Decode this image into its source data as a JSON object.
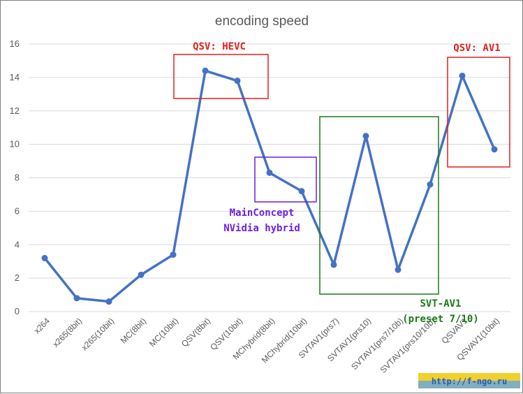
{
  "chart_data": {
    "type": "line",
    "title": "encoding speed",
    "categories": [
      "x264",
      "x265(8bit)",
      "x265(10bit)",
      "MC(8bit)",
      "MC(10bit)",
      "QSV(8bit)",
      "QSV(10bit)",
      "MChybrid(8bit)",
      "MChybrid(10bit)",
      "SVTAV1(prs7)",
      "SVTAV1(prs10)",
      "SVTAV1(prs7/10b)",
      "SVTAV1(prs10/10b)",
      "QSVAV1",
      "QSVAV1(10bit)"
    ],
    "series": [
      {
        "values": [
          3.2,
          0.8,
          0.6,
          2.2,
          3.4,
          14.4,
          13.8,
          8.3,
          7.2,
          2.8,
          10.5,
          2.5,
          7.6,
          14.1,
          9.7
        ]
      }
    ],
    "ylim": [
      0,
      16
    ],
    "yticks": [
      "0",
      "2",
      "4",
      "6",
      "8",
      "10",
      "12",
      "14",
      "16"
    ],
    "grid": true,
    "legend": "none",
    "line_color": "#4472c4"
  },
  "annotations": [
    {
      "lines": [
        "QSV: HEVC"
      ],
      "color": "#e02020"
    },
    {
      "lines": [
        "QSV: AV1"
      ],
      "color": "#e02020"
    },
    {
      "lines": [
        "MainConcept",
        "NVidia hybrid"
      ],
      "color": "#6a1fe0"
    },
    {
      "lines": [
        "SVT-AV1",
        "(preset 7/10)"
      ],
      "color": "#1a7a1a"
    }
  ],
  "watermark": "http://f-ngo.ru"
}
